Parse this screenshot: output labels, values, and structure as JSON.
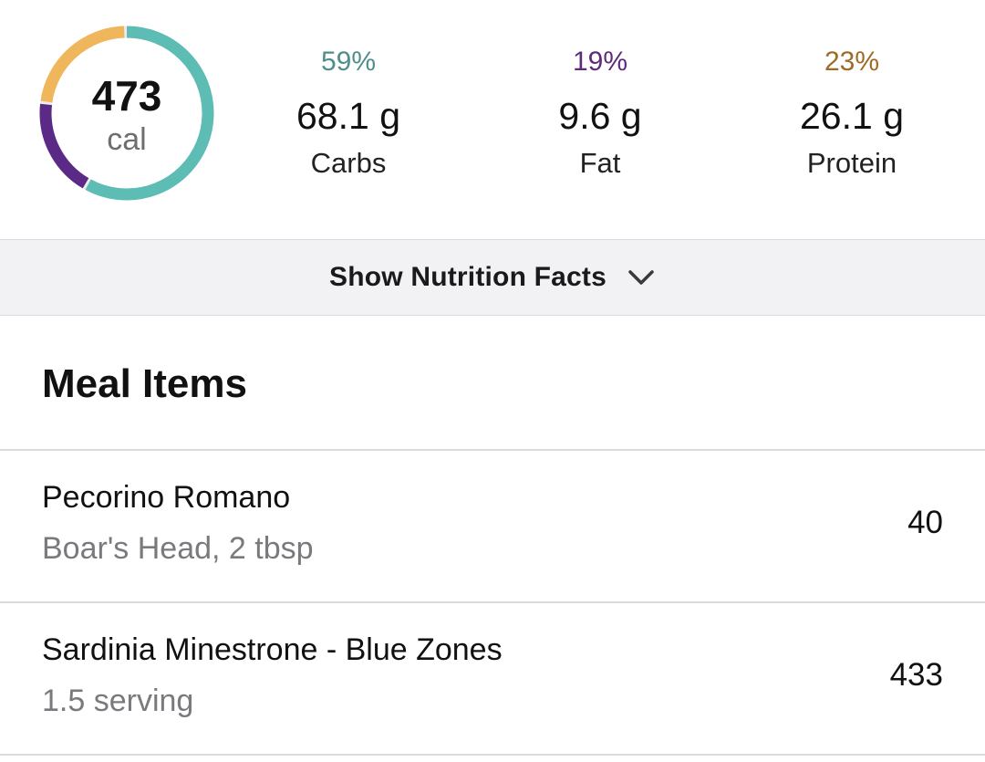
{
  "summary": {
    "calories_value": "473",
    "calories_unit": "cal",
    "ring": {
      "carbs_fraction": 0.59,
      "fat_fraction": 0.19,
      "protein_fraction": 0.23
    },
    "macros": [
      {
        "key": "carbs",
        "percent": "59%",
        "grams": "68.1 g",
        "label": "Carbs",
        "color": "#4f8f8a"
      },
      {
        "key": "fat",
        "percent": "19%",
        "grams": "9.6 g",
        "label": "Fat",
        "color": "#5e2a7c"
      },
      {
        "key": "protein",
        "percent": "23%",
        "grams": "26.1 g",
        "label": "Protein",
        "color": "#a06a25"
      }
    ],
    "ring_colors": {
      "carbs": "#5dbcb3",
      "fat": "#5b2a86",
      "protein": "#f0b65b"
    }
  },
  "nutrition_toggle": {
    "label": "Show Nutrition Facts",
    "icon": "chevron-down-icon"
  },
  "meal_items": {
    "title": "Meal Items",
    "items": [
      {
        "name": "Pecorino Romano",
        "detail": "Boar's Head, 2 tbsp",
        "calories": "40"
      },
      {
        "name": "Sardinia Minestrone - Blue Zones",
        "detail": "1.5 serving",
        "calories": "433"
      }
    ]
  }
}
